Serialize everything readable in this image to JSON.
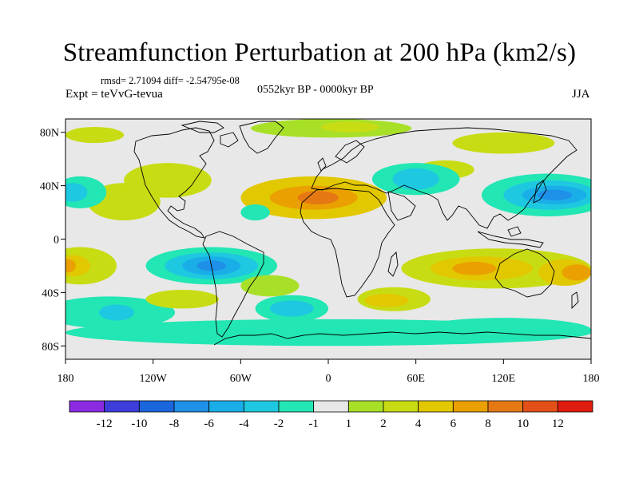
{
  "title": "Streamfunction Perturbation at 200 hPa (km2/s)",
  "stats_text": "rmsd= 2.71094 diff= -2.54795e-08",
  "experiment_text": "Expt = teVvG-tevua",
  "period_text": "0552kyr BP - 0000kyr BP",
  "season_text": "JJA",
  "map_axes": {
    "lon_range": [
      -180,
      180
    ],
    "lat_range": [
      -90,
      90
    ],
    "lon_ticks": [
      {
        "value": -180,
        "label": "180"
      },
      {
        "value": -120,
        "label": "120W"
      },
      {
        "value": -60,
        "label": "60W"
      },
      {
        "value": 0,
        "label": "0"
      },
      {
        "value": 60,
        "label": "60E"
      },
      {
        "value": 120,
        "label": "120E"
      },
      {
        "value": 180,
        "label": "180"
      }
    ],
    "lat_ticks": [
      {
        "value": 80,
        "label": "80N"
      },
      {
        "value": 40,
        "label": "40N"
      },
      {
        "value": 0,
        "label": "0"
      },
      {
        "value": -40,
        "label": "40S"
      },
      {
        "value": -80,
        "label": "80S"
      }
    ]
  },
  "colorbar": {
    "colors": [
      "#8a2be2",
      "#3d3ddb",
      "#1a66dd",
      "#1e90e8",
      "#1aaee8",
      "#1ec8e0",
      "#22e6b4",
      "#e8e8e8",
      "#a8e028",
      "#c8dc14",
      "#e2c800",
      "#eaa000",
      "#e67814",
      "#e25018",
      "#e01c0e"
    ],
    "labels": [
      "-12",
      "-10",
      "-8",
      "-6",
      "-4",
      "-2",
      "-1",
      "1",
      "2",
      "4",
      "6",
      "8",
      "10",
      "12"
    ]
  },
  "anomalies": [
    {
      "name": "n-atlantic-africa-high",
      "lon": -10,
      "lat": 31,
      "rx": 50,
      "ry": 16,
      "level": 4
    },
    {
      "name": "n-atlantic-africa-high-core",
      "lon": -10,
      "lat": 31,
      "rx": 30,
      "ry": 9,
      "level": 6
    },
    {
      "name": "n-atlantic-africa-high-center",
      "lon": -7,
      "lat": 31,
      "rx": 14,
      "ry": 5,
      "level": 8
    },
    {
      "name": "n-pacific-east-high",
      "lon": -140,
      "lat": 28,
      "rx": 25,
      "ry": 14,
      "level": 2
    },
    {
      "name": "n-america-high",
      "lon": -110,
      "lat": 44,
      "rx": 30,
      "ry": 13,
      "level": 2
    },
    {
      "name": "mid-atlantic-low",
      "lon": -50,
      "lat": 20,
      "rx": 10,
      "ry": 6,
      "level": -1
    },
    {
      "name": "arctic-high",
      "lon": 2,
      "lat": 83,
      "rx": 55,
      "ry": 7,
      "level": 1
    },
    {
      "name": "n-scandinavia-high",
      "lon": 15,
      "lat": 84,
      "rx": 20,
      "ry": 4,
      "level": 2
    },
    {
      "name": "siberia-high",
      "lon": 80,
      "lat": 52,
      "rx": 20,
      "ry": 7,
      "level": 2
    },
    {
      "name": "central-asia-low",
      "lon": 60,
      "lat": 45,
      "rx": 30,
      "ry": 12,
      "level": -1
    },
    {
      "name": "central-asia-low-core",
      "lon": 60,
      "lat": 45,
      "rx": 16,
      "ry": 8,
      "level": -2
    },
    {
      "name": "w-pacific-low",
      "lon": 150,
      "lat": 33,
      "rx": 45,
      "ry": 16,
      "level": -1
    },
    {
      "name": "w-pacific-low-2",
      "lon": 152,
      "lat": 33,
      "rx": 32,
      "ry": 11,
      "level": -2
    },
    {
      "name": "w-pacific-low-4",
      "lon": 155,
      "lat": 33,
      "rx": 22,
      "ry": 7,
      "level": -4
    },
    {
      "name": "w-pacific-low-6",
      "lon": 155,
      "lat": 33,
      "rx": 12,
      "ry": 4,
      "level": -6
    },
    {
      "name": "nw-pacific-high",
      "lon": 120,
      "lat": 72,
      "rx": 35,
      "ry": 8,
      "level": 2
    },
    {
      "name": "ne-pacific-low",
      "lon": -170,
      "lat": 35,
      "rx": 18,
      "ry": 12,
      "level": -1
    },
    {
      "name": "ne-pacific-low-core",
      "lon": -175,
      "lat": 35,
      "rx": 10,
      "ry": 7,
      "level": -2
    },
    {
      "name": "s-pacific-east-low",
      "lon": -80,
      "lat": -20,
      "rx": 45,
      "ry": 14,
      "level": -1
    },
    {
      "name": "s-pacific-east-low-2",
      "lon": -80,
      "lat": -20,
      "rx": 32,
      "ry": 10,
      "level": -2
    },
    {
      "name": "s-pacific-east-low-4",
      "lon": -80,
      "lat": -20,
      "rx": 20,
      "ry": 7,
      "level": -4
    },
    {
      "name": "s-pacific-east-low-6",
      "lon": -80,
      "lat": -20,
      "rx": 10,
      "ry": 4,
      "level": -6
    },
    {
      "name": "s-pacific-west-high",
      "lon": -170,
      "lat": -20,
      "rx": 25,
      "ry": 14,
      "level": 2
    },
    {
      "name": "s-pacific-west-high-core",
      "lon": -175,
      "lat": -20,
      "rx": 12,
      "ry": 8,
      "level": 4
    },
    {
      "name": "s-pacific-west-high-center",
      "lon": -178,
      "lat": -20,
      "rx": 5,
      "ry": 5,
      "level": 6
    },
    {
      "name": "australia-high",
      "lon": 115,
      "lat": -22,
      "rx": 65,
      "ry": 15,
      "level": 2
    },
    {
      "name": "australia-high-core",
      "lon": 105,
      "lat": -22,
      "rx": 35,
      "ry": 9,
      "level": 4
    },
    {
      "name": "australia-high-center",
      "lon": 100,
      "lat": -22,
      "rx": 15,
      "ry": 5,
      "level": 6
    },
    {
      "name": "tasman-high",
      "lon": 162,
      "lat": -25,
      "rx": 18,
      "ry": 10,
      "level": 4
    },
    {
      "name": "tasman-high-center",
      "lon": 170,
      "lat": -25,
      "rx": 10,
      "ry": 6,
      "level": 6
    },
    {
      "name": "s-indian-high",
      "lon": 45,
      "lat": -45,
      "rx": 25,
      "ry": 9,
      "level": 2
    },
    {
      "name": "s-indian-high-core",
      "lon": 40,
      "lat": -46,
      "rx": 15,
      "ry": 5,
      "level": 4
    },
    {
      "name": "s-atlantic-low",
      "lon": -25,
      "lat": -52,
      "rx": 25,
      "ry": 10,
      "level": -1
    },
    {
      "name": "s-atlantic-low-core",
      "lon": -25,
      "lat": -52,
      "rx": 15,
      "ry": 6,
      "level": -2
    },
    {
      "name": "southern-ocean-low",
      "lon": 0,
      "lat": -70,
      "rx": 180,
      "ry": 10,
      "level": -1
    },
    {
      "name": "s-pacific-south-low",
      "lon": -150,
      "lat": -55,
      "rx": 45,
      "ry": 12,
      "level": -1
    },
    {
      "name": "s-pacific-south-low-core",
      "lon": -145,
      "lat": -55,
      "rx": 12,
      "ry": 6,
      "level": -2
    },
    {
      "name": "antarctic-low-east",
      "lon": 120,
      "lat": -68,
      "rx": 60,
      "ry": 9,
      "level": -1
    },
    {
      "name": "s-pacific-south-high",
      "lon": -100,
      "lat": -45,
      "rx": 25,
      "ry": 7,
      "level": 2
    },
    {
      "name": "south-america-high",
      "lon": -40,
      "lat": -35,
      "rx": 20,
      "ry": 8,
      "level": 1
    },
    {
      "name": "polar-circle-high",
      "lon": -160,
      "lat": 78,
      "rx": 20,
      "ry": 6,
      "level": 2
    }
  ]
}
